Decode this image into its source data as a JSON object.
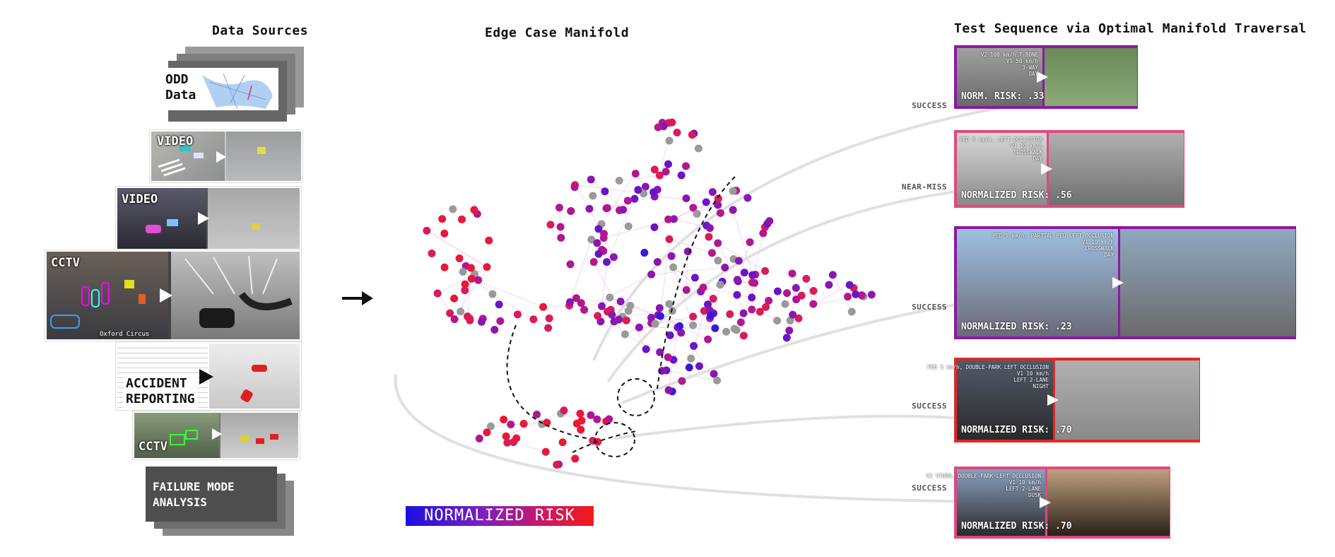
{
  "headers": {
    "data_sources": "Data Sources",
    "manifold": "Edge Case Manifold",
    "test_sequence": "Test Sequence via Optimal Manifold Traversal"
  },
  "sources": {
    "odd_data": "ODD\nData",
    "video_1": "VIDEO",
    "video_2": "VIDEO",
    "cctv_1": "CCTV",
    "cctv_1_caption": "Oxford Circus",
    "accident": "ACCIDENT\nREPORTING",
    "cctv_2": "CCTV",
    "failure": "FAILURE MODE\nANALYSIS"
  },
  "legend": {
    "label": "NORMALIZED RISK",
    "colors": [
      "#1a10e0",
      "#7a20c0",
      "#d01860",
      "#f01a1a"
    ]
  },
  "tests": [
    {
      "outcome": "SUCCESS",
      "risk": "NORM. RISK: .33",
      "meta": "V2 100 km/h T-BONE\nV1 50 km/h\n3-WAY\nDAY",
      "border": "#8a1aa0"
    },
    {
      "outcome": "NEAR-MISS",
      "risk": "NORMALIZED RISK: .56",
      "meta": "PED 5 km/h, LEFT-OCCLUSION\nV1 10 km/h\nCROSSWALK\nDAY",
      "border": "#e04880"
    },
    {
      "outcome": "SUCCESS",
      "risk": "NORMALIZED RISK: .23",
      "meta": "PED 5 km/h, PARTIAL PED LEFT-OCCLUSION\nV1 10 km/h\nCROSSWALK\nDAY",
      "border": "#8a1aa0"
    },
    {
      "outcome": "SUCCESS",
      "risk": "NORMALIZED RISK: .70",
      "meta": "PED 5 km/h, DOUBLE-PARK LEFT OCCLUSION\nV1 10 km/h\nLEFT 2-LANE\nNIGHT",
      "border": "#e02828"
    },
    {
      "outcome": "SUCCESS",
      "risk": "NORMALIZED RISK: .70",
      "meta": "V2 VTURN, DOUBLE-PARK LEFT OCCLUSION\nV1 10 km/h\nLEFT 2-LANE\nDUSK",
      "border": "#e04880"
    }
  ],
  "icons": {
    "main_arrow": "right-arrow-icon"
  }
}
